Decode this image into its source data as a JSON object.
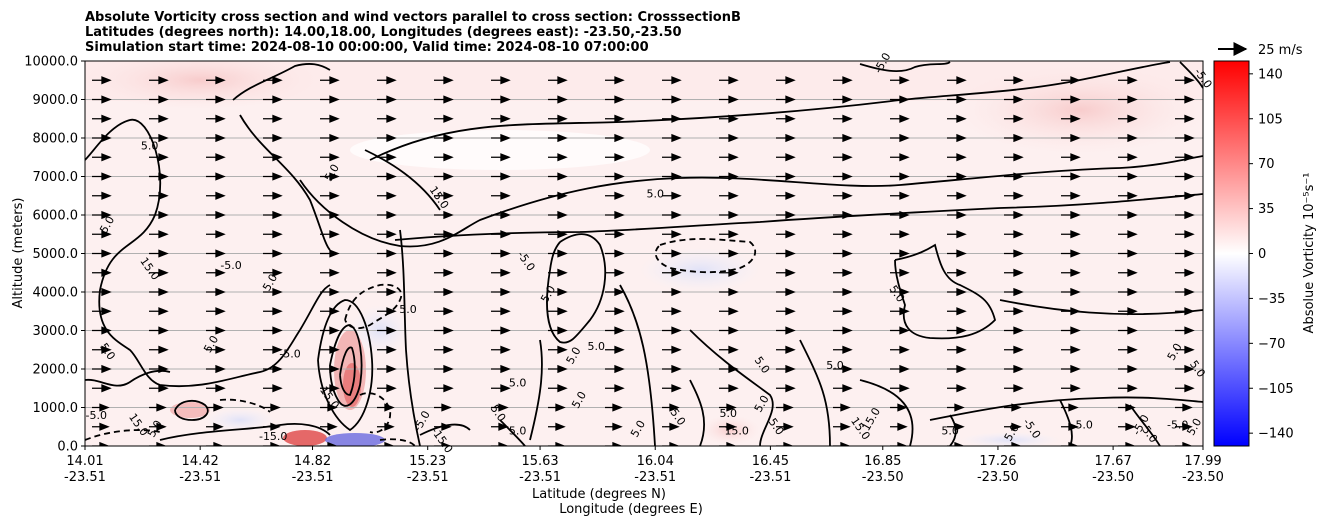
{
  "chart_data": {
    "type": "heatmap",
    "title_lines": [
      "Absolute Vorticity cross section and wind vectors parallel to cross section: CrosssectionB",
      "Latitudes (degrees north): 14.00,18.00, Longitudes (degrees east): -23.50,-23.50",
      "Simulation start time: 2024-08-10 00:00:00, Valid time: 2024-08-10 07:00:00"
    ],
    "xlabel_lines": [
      "Latitude (degrees N)",
      "Longitude (degrees E)"
    ],
    "ylabel": "Altitude (meters)",
    "ylim": [
      0,
      10000
    ],
    "yticks": [
      "0.0",
      "1000.0",
      "2000.0",
      "3000.0",
      "4000.0",
      "5000.0",
      "6000.0",
      "7000.0",
      "8000.0",
      "9000.0",
      "10000.0"
    ],
    "xticks": [
      {
        "lat": "14.01",
        "lon": "-23.51"
      },
      {
        "lat": "14.42",
        "lon": "-23.51"
      },
      {
        "lat": "14.82",
        "lon": "-23.51"
      },
      {
        "lat": "15.23",
        "lon": "-23.51"
      },
      {
        "lat": "15.63",
        "lon": "-23.51"
      },
      {
        "lat": "16.04",
        "lon": "-23.51"
      },
      {
        "lat": "16.45",
        "lon": "-23.51"
      },
      {
        "lat": "16.85",
        "lon": "-23.50"
      },
      {
        "lat": "17.26",
        "lon": "-23.50"
      },
      {
        "lat": "17.67",
        "lon": "-23.50"
      },
      {
        "lat": "17.99",
        "lon": "-23.50"
      }
    ],
    "grid": "horizontal",
    "colorbar": {
      "label": "Absolue Vorticity 10⁻⁵s⁻¹",
      "range": [
        -150,
        150
      ],
      "ticks": [
        "140",
        "105",
        "70",
        "35",
        "0",
        "−35",
        "−70",
        "−105",
        "−140"
      ],
      "colormap": "bwr",
      "colors": {
        "min": "#0000ff",
        "mid": "#ffffff",
        "max": "#ff0000"
      }
    },
    "quiver_key": "25 m/s",
    "contour_labels": [
      {
        "text": "-5.0",
        "lat": 16.86,
        "alt": 9900
      },
      {
        "text": "-5.0",
        "lat": 17.98,
        "alt": 9500
      },
      {
        "text": "5.0",
        "lat": 14.24,
        "alt": 7700
      },
      {
        "text": "5.0",
        "lat": 14.9,
        "alt": 7050
      },
      {
        "text": "15.0",
        "lat": 15.26,
        "alt": 6400
      },
      {
        "text": "5.0",
        "lat": 16.04,
        "alt": 6450
      },
      {
        "text": "5.0",
        "lat": 14.1,
        "alt": 5700
      },
      {
        "text": "15.0",
        "lat": 14.23,
        "alt": 4550
      },
      {
        "text": "-5.0",
        "lat": 14.53,
        "alt": 4600
      },
      {
        "text": "5.0",
        "lat": 14.68,
        "alt": 4200
      },
      {
        "text": "-5.0",
        "lat": 15.57,
        "alt": 4750
      },
      {
        "text": "5.0",
        "lat": 15.16,
        "alt": 3450
      },
      {
        "text": "5.0",
        "lat": 14.47,
        "alt": 2600
      },
      {
        "text": "5.0",
        "lat": 14.08,
        "alt": 2400
      },
      {
        "text": "-5.0",
        "lat": 14.74,
        "alt": 2300
      },
      {
        "text": "5.0",
        "lat": 15.67,
        "alt": 3900
      },
      {
        "text": "5.0",
        "lat": 16.89,
        "alt": 3900
      },
      {
        "text": "5.0",
        "lat": 15.83,
        "alt": 2500
      },
      {
        "text": "5.0",
        "lat": 15.76,
        "alt": 2300
      },
      {
        "text": "5.0",
        "lat": 16.41,
        "alt": 2050
      },
      {
        "text": "5.0",
        "lat": 16.68,
        "alt": 2000
      },
      {
        "text": "5.0",
        "lat": 17.9,
        "alt": 2400
      },
      {
        "text": "5.0",
        "lat": 17.96,
        "alt": 1950
      },
      {
        "text": "5.0",
        "lat": 15.55,
        "alt": 1550
      },
      {
        "text": "5.0",
        "lat": 15.78,
        "alt": 1150
      },
      {
        "text": "15.0",
        "lat": 14.87,
        "alt": 1200
      },
      {
        "text": "-5.0",
        "lat": 14.05,
        "alt": 700
      },
      {
        "text": "-5.0",
        "lat": 15.22,
        "alt": 600
      },
      {
        "text": "5.0",
        "lat": 15.47,
        "alt": 800
      },
      {
        "text": "5.0",
        "lat": 15.55,
        "alt": 300
      },
      {
        "text": "5.0",
        "lat": 15.99,
        "alt": 400
      },
      {
        "text": "5.0",
        "lat": 16.11,
        "alt": 700
      },
      {
        "text": "5.0",
        "lat": 16.3,
        "alt": 750
      },
      {
        "text": "5.0",
        "lat": 16.43,
        "alt": 1050
      },
      {
        "text": "5.0",
        "lat": 16.46,
        "alt": 450
      },
      {
        "text": "15.0",
        "lat": 16.33,
        "alt": 300
      },
      {
        "text": "15.0",
        "lat": 16.82,
        "alt": 650
      },
      {
        "text": "15.0",
        "lat": 16.76,
        "alt": 400
      },
      {
        "text": "5.0",
        "lat": 17.09,
        "alt": 300
      },
      {
        "text": "5.0",
        "lat": 17.32,
        "alt": 300
      },
      {
        "text": "-5.0",
        "lat": 17.37,
        "alt": 400
      },
      {
        "text": "-5.0",
        "lat": 17.56,
        "alt": 450
      },
      {
        "text": "-5.0",
        "lat": 17.78,
        "alt": 500
      },
      {
        "text": "5.0",
        "lat": 17.79,
        "alt": 250
      },
      {
        "text": "-5.0",
        "lat": 17.9,
        "alt": 450
      },
      {
        "text": "5.0",
        "lat": 17.97,
        "alt": 450
      },
      {
        "text": "-15.0",
        "lat": 15.27,
        "alt": 100
      },
      {
        "text": "-15.0",
        "lat": 14.68,
        "alt": 150
      },
      {
        "text": "5.0",
        "lat": 14.27,
        "alt": 400
      },
      {
        "text": "15.0",
        "lat": 14.19,
        "alt": 500
      }
    ]
  }
}
